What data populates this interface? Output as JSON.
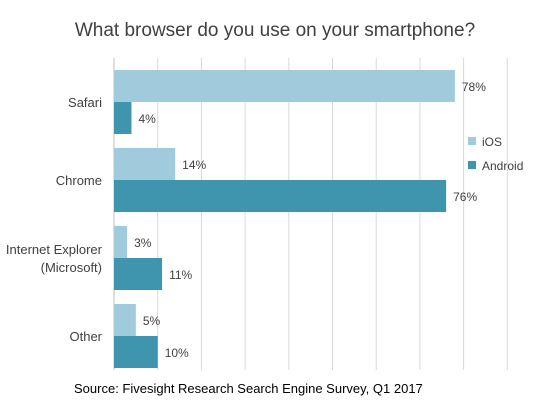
{
  "chart_data": {
    "type": "bar",
    "orientation": "horizontal",
    "title": "What browser do you use on your smartphone?",
    "source": "Source: Fivesight Research Search Engine Survey, Q1 2017",
    "categories": [
      [
        "Safari"
      ],
      [
        "Chrome"
      ],
      [
        "Internet Explorer",
        "(Microsoft)"
      ],
      [
        "Other"
      ]
    ],
    "series": [
      {
        "name": "iOS",
        "values": [
          78,
          14,
          3,
          5
        ],
        "labels": [
          "78%",
          "14%",
          "3%",
          "5%"
        ],
        "color": "#9fcbdc"
      },
      {
        "name": "Android",
        "values": [
          4,
          76,
          11,
          10
        ],
        "labels": [
          "4%",
          "76%",
          "11%",
          "10%"
        ],
        "color": "#3f95ad"
      }
    ],
    "xlim": [
      0,
      100
    ],
    "unit": "%",
    "grid": true,
    "legend_position": "right"
  }
}
